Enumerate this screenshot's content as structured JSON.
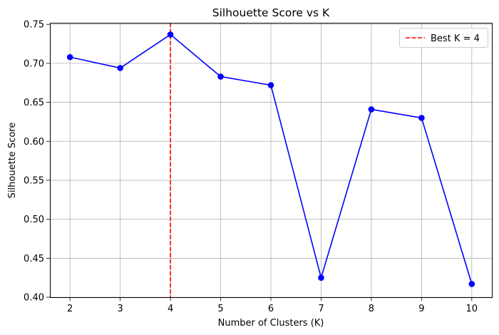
{
  "chart_data": {
    "type": "line",
    "title": "Silhouette Score vs K",
    "xlabel": "Number of Clusters (K)",
    "ylabel": "Silhouette Score",
    "x": [
      2,
      3,
      4,
      5,
      6,
      7,
      8,
      9,
      10
    ],
    "series": [
      {
        "values": [
          0.708,
          0.694,
          0.737,
          0.683,
          0.672,
          0.425,
          0.641,
          0.63,
          0.417
        ],
        "color": "#0000ff",
        "marker": "circle"
      }
    ],
    "xlim": [
      1.6,
      10.4
    ],
    "ylim": [
      0.4,
      0.752
    ],
    "xticks": [
      "2",
      "3",
      "4",
      "5",
      "6",
      "7",
      "8",
      "9",
      "10"
    ],
    "yticks": [
      "0.40",
      "0.45",
      "0.50",
      "0.55",
      "0.60",
      "0.65",
      "0.70",
      "0.75"
    ],
    "grid": true,
    "reference_line": {
      "orientation": "vertical",
      "x": 4,
      "style": "dashed",
      "color": "#ff0000",
      "label": "Best K = 4"
    },
    "legend": {
      "position": "top-right",
      "entries": [
        "Best K = 4"
      ]
    }
  }
}
